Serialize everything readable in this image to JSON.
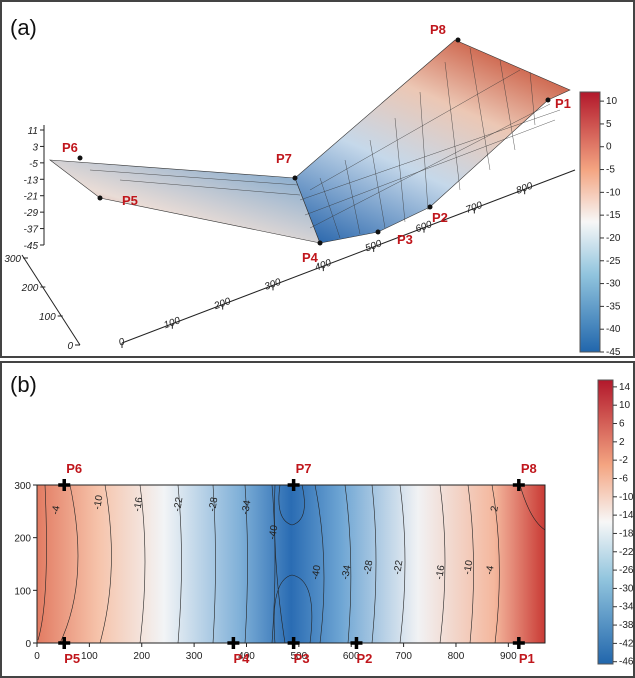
{
  "chart_data": [
    {
      "type": "surface",
      "panel_label": "(a)",
      "zlim": [
        -45,
        11
      ],
      "zticks": [
        11,
        3,
        -5,
        -13,
        -21,
        -29,
        -37,
        -45
      ],
      "xlim": [
        0,
        900
      ],
      "xticks": [
        0,
        100,
        200,
        300,
        400,
        500,
        600,
        700,
        800
      ],
      "ylim": [
        0,
        300
      ],
      "yticks": [
        0,
        100,
        200,
        300
      ],
      "point_labels": [
        "P1",
        "P2",
        "P3",
        "P4",
        "P5",
        "P6",
        "P7",
        "P8"
      ],
      "clim": [
        -45,
        12
      ],
      "cticks": [
        10,
        5,
        0,
        -5,
        -10,
        -15,
        -20,
        -25,
        -30,
        -35,
        -40,
        -45
      ]
    },
    {
      "type": "contour",
      "panel_label": "(b)",
      "xlim": [
        0,
        970
      ],
      "xticks": [
        0,
        100,
        200,
        300,
        400,
        500,
        600,
        700,
        800,
        900
      ],
      "ylim": [
        0,
        300
      ],
      "yticks": [
        0,
        100,
        200,
        300
      ],
      "points": [
        {
          "name": "P1",
          "x": 920,
          "y": 0
        },
        {
          "name": "P2",
          "x": 610,
          "y": 0
        },
        {
          "name": "P3",
          "x": 490,
          "y": 0
        },
        {
          "name": "P4",
          "x": 375,
          "y": 0
        },
        {
          "name": "P5",
          "x": 52,
          "y": 0
        },
        {
          "name": "P6",
          "x": 52,
          "y": 300
        },
        {
          "name": "P7",
          "x": 490,
          "y": 300
        },
        {
          "name": "P8",
          "x": 920,
          "y": 300
        }
      ],
      "contour_labels": [
        -4,
        -10,
        -16,
        -22,
        -28,
        -34,
        -40,
        -40,
        -34,
        -28,
        -22,
        -16,
        -10,
        -4,
        2
      ],
      "clim": [
        -46.5,
        15.5
      ],
      "cticks": [
        14,
        10,
        6,
        2,
        -2,
        -6,
        -10,
        -14,
        -18,
        -22,
        -26,
        -30,
        -34,
        -38,
        -42,
        -46
      ]
    }
  ]
}
